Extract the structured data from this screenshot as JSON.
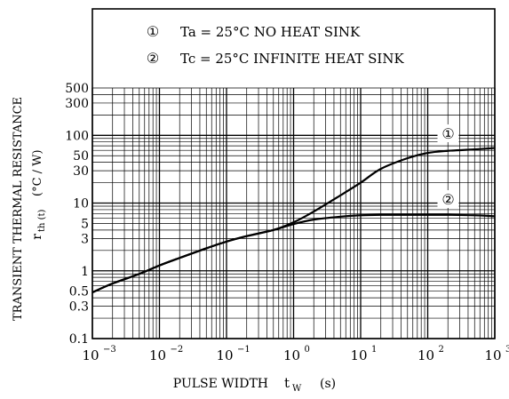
{
  "chart_data": {
    "type": "line",
    "title": "",
    "xlabel": "PULSE WIDTH",
    "xlabel_symbol": "t",
    "xlabel_symbol_sub": "W",
    "xlabel_unit": "(s)",
    "ylabel_line1": "TRANSIENT THERMAL RESISTANCE",
    "ylabel_line2_symbol": "r",
    "ylabel_line2_sub": "th (t)",
    "ylabel_line2_unit": "(°C / W)",
    "xscale": "log",
    "yscale": "log",
    "xlim": [
      0.001,
      1000
    ],
    "ylim": [
      0.1,
      500
    ],
    "grid": true,
    "x_tick_labels": [
      {
        "value": 0.001,
        "base": "10",
        "exp": "−3"
      },
      {
        "value": 0.01,
        "base": "10",
        "exp": "−2"
      },
      {
        "value": 0.1,
        "base": "10",
        "exp": "−1"
      },
      {
        "value": 1,
        "base": "10",
        "exp": "0"
      },
      {
        "value": 10,
        "base": "10",
        "exp": "1"
      },
      {
        "value": 100,
        "base": "10",
        "exp": "2"
      },
      {
        "value": 1000,
        "base": "10",
        "exp": "3"
      }
    ],
    "y_tick_labels": [
      {
        "value": 0.1,
        "label": "0.1"
      },
      {
        "value": 0.3,
        "label": "0.3"
      },
      {
        "value": 0.5,
        "label": "0.5"
      },
      {
        "value": 1,
        "label": "1"
      },
      {
        "value": 3,
        "label": "3"
      },
      {
        "value": 5,
        "label": "5"
      },
      {
        "value": 10,
        "label": "10"
      },
      {
        "value": 30,
        "label": "30"
      },
      {
        "value": 50,
        "label": "50"
      },
      {
        "value": 100,
        "label": "100"
      },
      {
        "value": 300,
        "label": "300"
      },
      {
        "value": 500,
        "label": "500"
      }
    ],
    "legend": {
      "placement": "top",
      "entries": [
        {
          "marker": "①",
          "text": "Ta = 25°C NO HEAT SINK"
        },
        {
          "marker": "②",
          "text": "Tc = 25°C INFINITE HEAT SINK"
        }
      ]
    },
    "series": [
      {
        "marker": "①",
        "x": [
          0.001,
          0.002,
          0.005,
          0.01,
          0.02,
          0.05,
          0.1,
          0.2,
          0.5,
          1,
          2,
          5,
          10,
          20,
          50,
          100,
          200,
          500,
          1000
        ],
        "y": [
          0.48,
          0.65,
          0.9,
          1.2,
          1.55,
          2.15,
          2.7,
          3.25,
          4.0,
          5.2,
          7.5,
          13,
          20,
          32,
          46,
          55,
          59,
          62,
          65
        ]
      },
      {
        "marker": "②",
        "x": [
          0.001,
          0.002,
          0.005,
          0.01,
          0.02,
          0.05,
          0.1,
          0.2,
          0.5,
          1,
          2,
          5,
          10,
          20,
          50,
          100,
          200,
          500,
          1000
        ],
        "y": [
          0.48,
          0.65,
          0.9,
          1.2,
          1.55,
          2.15,
          2.7,
          3.25,
          4.0,
          4.9,
          5.7,
          6.3,
          6.6,
          6.7,
          6.7,
          6.7,
          6.7,
          6.6,
          6.4
        ]
      }
    ]
  }
}
